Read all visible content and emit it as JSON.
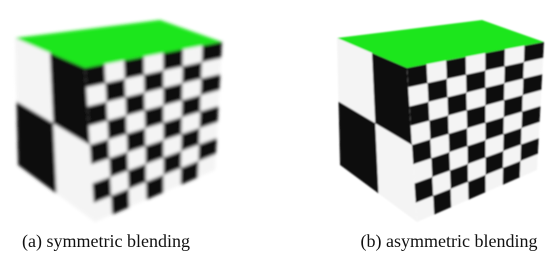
{
  "figure": {
    "captions": [
      "(a) symmetric blending",
      "(b) asymmetric blending"
    ]
  }
}
